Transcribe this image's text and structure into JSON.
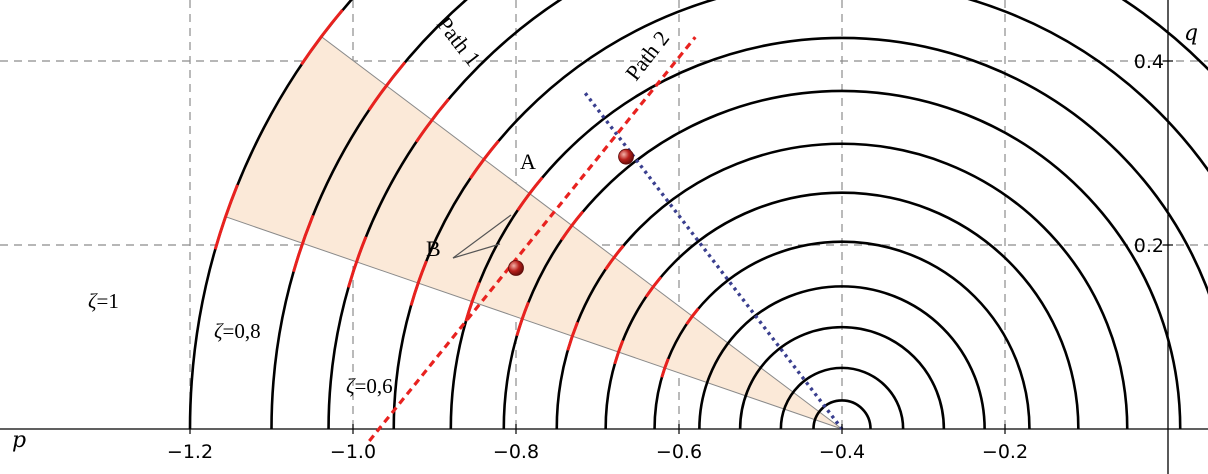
{
  "colors": {
    "arc": "#000000",
    "arc_highlight": "#e8221f",
    "path1_line": "#e8221f",
    "path2_line": "#3a3f8f",
    "wedge_fill": "#fbe9d8",
    "wedge_edge": "#8a8a8a",
    "point_fill": "#b8201c",
    "grid": "#8c8c8c"
  },
  "labels": {
    "x_axis": "p",
    "y_axis": "q",
    "path1": "Path 1",
    "path2": "Path 2",
    "point_a": "A",
    "point_b": "B",
    "zeta_1": "ζ=1",
    "zeta_08": "ζ=0,8",
    "zeta_06": "ζ=0,6"
  },
  "chart_data": {
    "type": "line",
    "title": "",
    "xlabel": "p",
    "ylabel": "q",
    "xlim": [
      -1.2,
      0.0
    ],
    "ylim": [
      0.0,
      0.43
    ],
    "x_ticks": [
      "-1.2",
      "-1.0",
      "-0.8",
      "-0.6",
      "-0.4",
      "-0.2"
    ],
    "x_tick_values": [
      -1.2,
      -1.0,
      -0.8,
      -0.6,
      -0.4,
      -0.2
    ],
    "y_ticks": [
      "0.2",
      "0.4"
    ],
    "y_tick_values": [
      0.2,
      0.4
    ],
    "grid": "dashed at labelled ticks",
    "center": {
      "p": -0.4,
      "q": 0.0
    },
    "circle_left_endpoints_p": [
      -1.2,
      -1.1,
      -1.03,
      -0.95,
      -0.88,
      -0.815,
      -0.75,
      -0.69,
      -0.63,
      -0.575,
      -0.525,
      -0.475,
      -0.435
    ],
    "highlight_angle_deg": [
      143,
      161
    ],
    "highlight_on_circles": 9,
    "wedge": {
      "angle_start_deg": 143,
      "angle_end_deg": 161
    },
    "series": [
      {
        "name": "Path 1",
        "style": "red dotted",
        "x": [
          -0.98,
          -0.58
        ],
        "y": [
          -0.013,
          0.426
        ]
      },
      {
        "name": "Path 2",
        "style": "blue dotted",
        "x": [
          -0.715,
          -0.4
        ],
        "y": [
          0.365,
          0.0
        ]
      }
    ],
    "points": [
      {
        "name": "A",
        "p": -0.665,
        "q": 0.296
      },
      {
        "name": "B",
        "p": -0.8,
        "q": 0.175
      }
    ],
    "annotations": [
      {
        "text": "ζ=1",
        "p": -1.105,
        "q": 0.135
      },
      {
        "text": "ζ=0,8",
        "p": -0.955,
        "q": 0.1
      },
      {
        "text": "ζ=0,6",
        "p": -0.79,
        "q": 0.038
      }
    ]
  }
}
